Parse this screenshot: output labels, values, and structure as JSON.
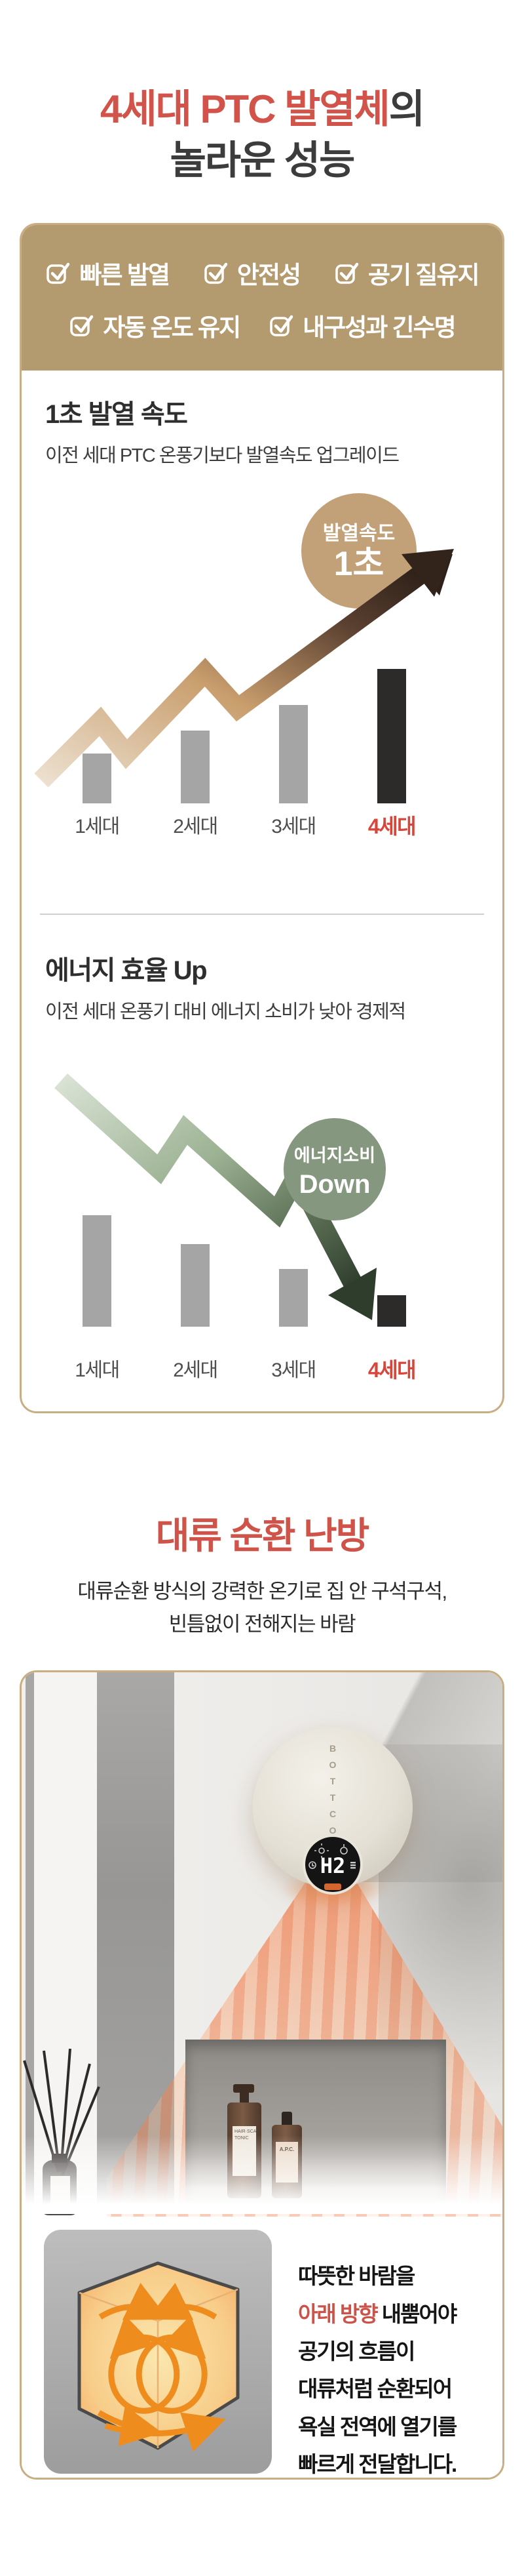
{
  "hero": {
    "title_red": "4세대 PTC 발열체",
    "title_suffix": "의",
    "title_line2": "놀라운 성능"
  },
  "features": {
    "items": [
      {
        "label": "빠른 발열"
      },
      {
        "label": "안전성"
      },
      {
        "label": "공기 질유지"
      },
      {
        "label": "자동 온도 유지"
      },
      {
        "label": "내구성과 긴수명"
      }
    ]
  },
  "chart_data": [
    {
      "type": "bar",
      "title": "1초 발열 속도",
      "subtitle": "이전 세대 PTC 온풍기보다 발열속도 업그레이드",
      "categories": [
        "1세대",
        "2세대",
        "3세대",
        "4세대"
      ],
      "values": [
        0.37,
        0.54,
        0.73,
        1.0
      ],
      "value_note": "relative bar heights, no numeric axis shown",
      "trend": "up",
      "badge_line1": "발열속도",
      "badge_line2": "1초",
      "highlight_category": "4세대",
      "bar_color": "#a5a5a5",
      "highlight_bar_color": "#2d2b2a",
      "arrow_colors": [
        "#ece0cf",
        "#c99e6d",
        "#5a4030",
        "#2f2119"
      ],
      "badge_color": "#c3a178"
    },
    {
      "type": "bar",
      "title": "에너지 효율 Up",
      "subtitle": "이전 세대 온풍기 대비 에너지 소비가 낮아 경제적",
      "categories": [
        "1세대",
        "2세대",
        "3세대",
        "4세대"
      ],
      "values": [
        1.0,
        0.74,
        0.52,
        0.28
      ],
      "value_note": "relative bar heights, no numeric axis shown",
      "trend": "down",
      "badge_line1": "에너지소비",
      "badge_line2": "Down",
      "highlight_category": "4세대",
      "bar_color": "#a5a5a5",
      "highlight_bar_color": "#2d2b2a",
      "arrow_colors": [
        "#d9e2d4",
        "#9cb293",
        "#55684f",
        "#31402f"
      ],
      "badge_color": "#85977e"
    }
  ],
  "section2": {
    "title": "대류 순환 난방",
    "subtitle_line1": "대류순환 방식의 강력한 온기로 집 안 구석구석,",
    "subtitle_line2": "빈틈없이 전해지는 바람"
  },
  "photo": {
    "brand_vertical": "BOTTCOM",
    "display_value": "H2",
    "bottle1_label": "HAIR·SCALP TONIC",
    "bottle2_label": "A.P.C."
  },
  "info_box": {
    "line1": "따뜻한 바람을",
    "line2_red": "아래 방향",
    "line2_rest": " 내뿜어야",
    "line3": "공기의 흐름이",
    "line4": "대류처럼 순환되어",
    "line5": "욕실 전역에 열기를",
    "line6": "빠르게 전달합니다."
  },
  "colors": {
    "accent_red": "#d15349",
    "label_red": "#d8463b",
    "tan_header": "#b49a6f",
    "tan_border": "#c9ad83",
    "text_dark": "#2e2e2e"
  }
}
